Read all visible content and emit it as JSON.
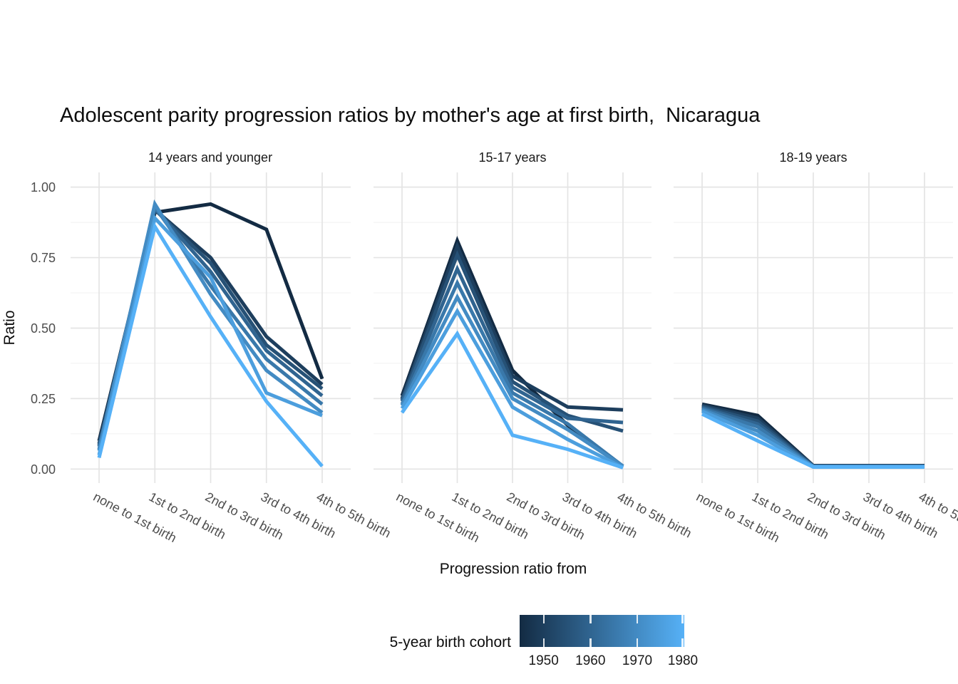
{
  "title": "Adolescent parity progression ratios by mother's age at first birth,  Nicaragua",
  "y_axis": {
    "label": "Ratio",
    "ticks": [
      "1.00",
      "0.75",
      "0.50",
      "0.25",
      "0.00"
    ],
    "tick_values": [
      1.0,
      0.75,
      0.5,
      0.25,
      0.0
    ]
  },
  "x_axis": {
    "label": "Progression ratio from"
  },
  "legend": {
    "title": "5-year birth cohort",
    "tick_labels": [
      "1950",
      "1960",
      "1970",
      "1980"
    ],
    "low_color": "#132B43",
    "high_color": "#56B1F7"
  },
  "chart_data": {
    "type": "line",
    "title": "Adolescent parity progression ratios by mother's age at first birth,  Nicaragua",
    "xlabel": "Progression ratio from",
    "ylabel": "Ratio",
    "ylim": [
      0.0,
      1.0
    ],
    "grid": "major+minor-horizontal, major-vertical, theme_minimal",
    "legend_position": "bottom-colorbar",
    "color_scale": {
      "name": "5-year birth cohort",
      "low": "#132B43",
      "high": "#56B1F7",
      "range": [
        1945,
        1980
      ]
    },
    "categories": [
      "none to 1st birth",
      "1st to 2nd birth",
      "2nd to 3rd birth",
      "3rd to 4th birth",
      "4th to 5th birth"
    ],
    "facets": [
      {
        "label": "14 years and younger",
        "series": [
          {
            "name": "1945",
            "color": "#132B43",
            "values": [
              0.1,
              0.91,
              0.94,
              0.85,
              0.32
            ]
          },
          {
            "name": "1950",
            "color": "#1D3E5D",
            "values": [
              0.09,
              0.92,
              0.75,
              0.47,
              0.3
            ]
          },
          {
            "name": "1955",
            "color": "#265176",
            "values": [
              0.085,
              0.92,
              0.73,
              0.44,
              0.285
            ]
          },
          {
            "name": "1960",
            "color": "#306490",
            "values": [
              0.08,
              0.925,
              0.7,
              0.42,
              0.26
            ]
          },
          {
            "name": "1965",
            "color": "#3978AA",
            "values": [
              0.07,
              0.93,
              0.65,
              0.39,
              0.23
            ]
          },
          {
            "name": "1970",
            "color": "#438BC3",
            "values": [
              0.065,
              0.94,
              0.62,
              0.35,
              0.2
            ]
          },
          {
            "name": "1975",
            "color": "#4C9EDD",
            "values": [
              0.05,
              0.89,
              0.68,
              0.27,
              0.19
            ]
          },
          {
            "name": "1980",
            "color": "#56B1F7",
            "values": [
              0.04,
              0.86,
              0.54,
              0.24,
              0.01
            ]
          }
        ]
      },
      {
        "label": "15-17 years",
        "series": [
          {
            "name": "1945",
            "color": "#132B43",
            "values": [
              0.26,
              0.81,
              0.35,
              0.155,
              0.01
            ]
          },
          {
            "name": "1950",
            "color": "#1D3E5D",
            "values": [
              0.25,
              0.79,
              0.33,
              0.22,
              0.21
            ]
          },
          {
            "name": "1955",
            "color": "#265176",
            "values": [
              0.245,
              0.76,
              0.31,
              0.19,
              0.135
            ]
          },
          {
            "name": "1960",
            "color": "#306490",
            "values": [
              0.24,
              0.71,
              0.29,
              0.18,
              0.165
            ]
          },
          {
            "name": "1965",
            "color": "#3978AA",
            "values": [
              0.23,
              0.66,
              0.27,
              0.16,
              0.01
            ]
          },
          {
            "name": "1970",
            "color": "#438BC3",
            "values": [
              0.225,
              0.61,
              0.25,
              0.14,
              0.01
            ]
          },
          {
            "name": "1975",
            "color": "#4C9EDD",
            "values": [
              0.215,
              0.56,
              0.22,
              0.105,
              0.005
            ]
          },
          {
            "name": "1980",
            "color": "#56B1F7",
            "values": [
              0.2,
              0.48,
              0.12,
              0.07,
              0.005
            ]
          }
        ]
      },
      {
        "label": "18-19 years",
        "series": [
          {
            "name": "1945",
            "color": "#132B43",
            "values": [
              0.23,
              0.19,
              0.012,
              0.012,
              0.012
            ]
          },
          {
            "name": "1950",
            "color": "#1D3E5D",
            "values": [
              0.226,
              0.18,
              0.011,
              0.011,
              0.011
            ]
          },
          {
            "name": "1955",
            "color": "#265176",
            "values": [
              0.222,
              0.17,
              0.011,
              0.011,
              0.011
            ]
          },
          {
            "name": "1960",
            "color": "#306490",
            "values": [
              0.218,
              0.16,
              0.01,
              0.01,
              0.01
            ]
          },
          {
            "name": "1965",
            "color": "#3978AA",
            "values": [
              0.214,
              0.15,
              0.009,
              0.009,
              0.009
            ]
          },
          {
            "name": "1970",
            "color": "#438BC3",
            "values": [
              0.21,
              0.135,
              0.009,
              0.009,
              0.009
            ]
          },
          {
            "name": "1975",
            "color": "#4C9EDD",
            "values": [
              0.205,
              0.12,
              0.008,
              0.008,
              0.008
            ]
          },
          {
            "name": "1980",
            "color": "#56B1F7",
            "values": [
              0.195,
              0.1,
              0.007,
              0.007,
              0.007
            ]
          }
        ]
      }
    ]
  }
}
